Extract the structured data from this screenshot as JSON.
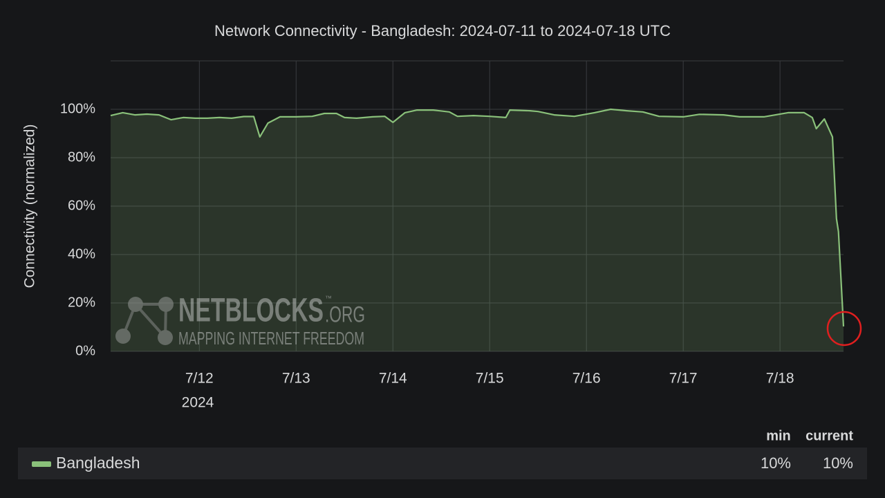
{
  "chart_data": {
    "type": "line",
    "title": "Network Connectivity - Bangladesh: 2024-07-11 to 2024-07-18 UTC",
    "y_label": "Connectivity (normalized)",
    "x_year_label": "2024",
    "x": [
      "2024-07-11T02:00",
      "2024-07-11T05:00",
      "2024-07-11T08:00",
      "2024-07-11T11:00",
      "2024-07-11T14:00",
      "2024-07-11T17:00",
      "2024-07-11T20:00",
      "2024-07-11T23:00",
      "2024-07-12T02:00",
      "2024-07-12T05:00",
      "2024-07-12T08:00",
      "2024-07-12T11:00",
      "2024-07-12T13:30",
      "2024-07-12T15:00",
      "2024-07-12T17:00",
      "2024-07-12T20:00",
      "2024-07-13T00:00",
      "2024-07-13T04:00",
      "2024-07-13T07:00",
      "2024-07-13T10:00",
      "2024-07-13T12:00",
      "2024-07-13T15:00",
      "2024-07-13T19:00",
      "2024-07-13T22:00",
      "2024-07-14T00:00",
      "2024-07-14T03:00",
      "2024-07-14T06:00",
      "2024-07-14T10:00",
      "2024-07-14T14:00",
      "2024-07-14T16:00",
      "2024-07-14T20:00",
      "2024-07-15T00:00",
      "2024-07-15T04:00",
      "2024-07-15T05:00",
      "2024-07-15T10:00",
      "2024-07-15T12:00",
      "2024-07-15T16:00",
      "2024-07-15T21:00",
      "2024-07-16T02:00",
      "2024-07-16T06:00",
      "2024-07-16T10:00",
      "2024-07-16T14:00",
      "2024-07-16T18:00",
      "2024-07-17T00:00",
      "2024-07-17T04:00",
      "2024-07-17T10:00",
      "2024-07-17T14:00",
      "2024-07-17T20:00",
      "2024-07-18T02:00",
      "2024-07-18T06:00",
      "2024-07-18T08:00",
      "2024-07-18T09:00",
      "2024-07-18T11:00",
      "2024-07-18T13:00",
      "2024-07-18T14:00",
      "2024-07-18T14:30",
      "2024-07-18T15:45"
    ],
    "series": [
      {
        "name": "Bangladesh",
        "color": "#8ac17a",
        "values": [
          97.4,
          98.6,
          97.7,
          98,
          97.7,
          95.7,
          96.6,
          96.3,
          96.3,
          96.6,
          96.3,
          97,
          97,
          88.6,
          94.3,
          96.9,
          96.9,
          97.1,
          98.3,
          98.3,
          96.6,
          96.3,
          96.9,
          97.1,
          94.6,
          98.6,
          99.7,
          99.7,
          98.9,
          97.1,
          97.4,
          97.1,
          96.6,
          99.7,
          99.4,
          99.1,
          97.7,
          97.1,
          98.6,
          100,
          99.4,
          98.9,
          97.1,
          96.9,
          97.9,
          97.7,
          96.9,
          96.9,
          98.6,
          98.6,
          96.6,
          92,
          96,
          88.6,
          54.9,
          49.4,
          10.3
        ]
      }
    ],
    "xlim": [
      "2024-07-11T02:00",
      "2024-07-18T15:45"
    ],
    "xticks": [
      {
        "value": "2024-07-12T00:00",
        "label": "7/12"
      },
      {
        "value": "2024-07-13T00:00",
        "label": "7/13"
      },
      {
        "value": "2024-07-14T00:00",
        "label": "7/14"
      },
      {
        "value": "2024-07-15T00:00",
        "label": "7/15"
      },
      {
        "value": "2024-07-16T00:00",
        "label": "7/16"
      },
      {
        "value": "2024-07-17T00:00",
        "label": "7/17"
      },
      {
        "value": "2024-07-18T00:00",
        "label": "7/18"
      }
    ],
    "ylim": [
      0,
      120
    ],
    "yticks": [
      {
        "value": 0,
        "label": "0%"
      },
      {
        "value": 20,
        "label": "20%"
      },
      {
        "value": 40,
        "label": "40%"
      },
      {
        "value": 60,
        "label": "60%"
      },
      {
        "value": 80,
        "label": "80%"
      },
      {
        "value": 100,
        "label": "100%"
      }
    ],
    "grid": true,
    "legend_stats": {
      "headers": [
        "min",
        "current"
      ],
      "values": [
        10,
        10
      ],
      "value_labels": [
        "10%",
        "10%"
      ]
    },
    "watermark": {
      "name": "NETBLOCKS",
      "tld": ".ORG",
      "tm": "™",
      "tagline": "MAPPING INTERNET FREEDOM"
    }
  }
}
